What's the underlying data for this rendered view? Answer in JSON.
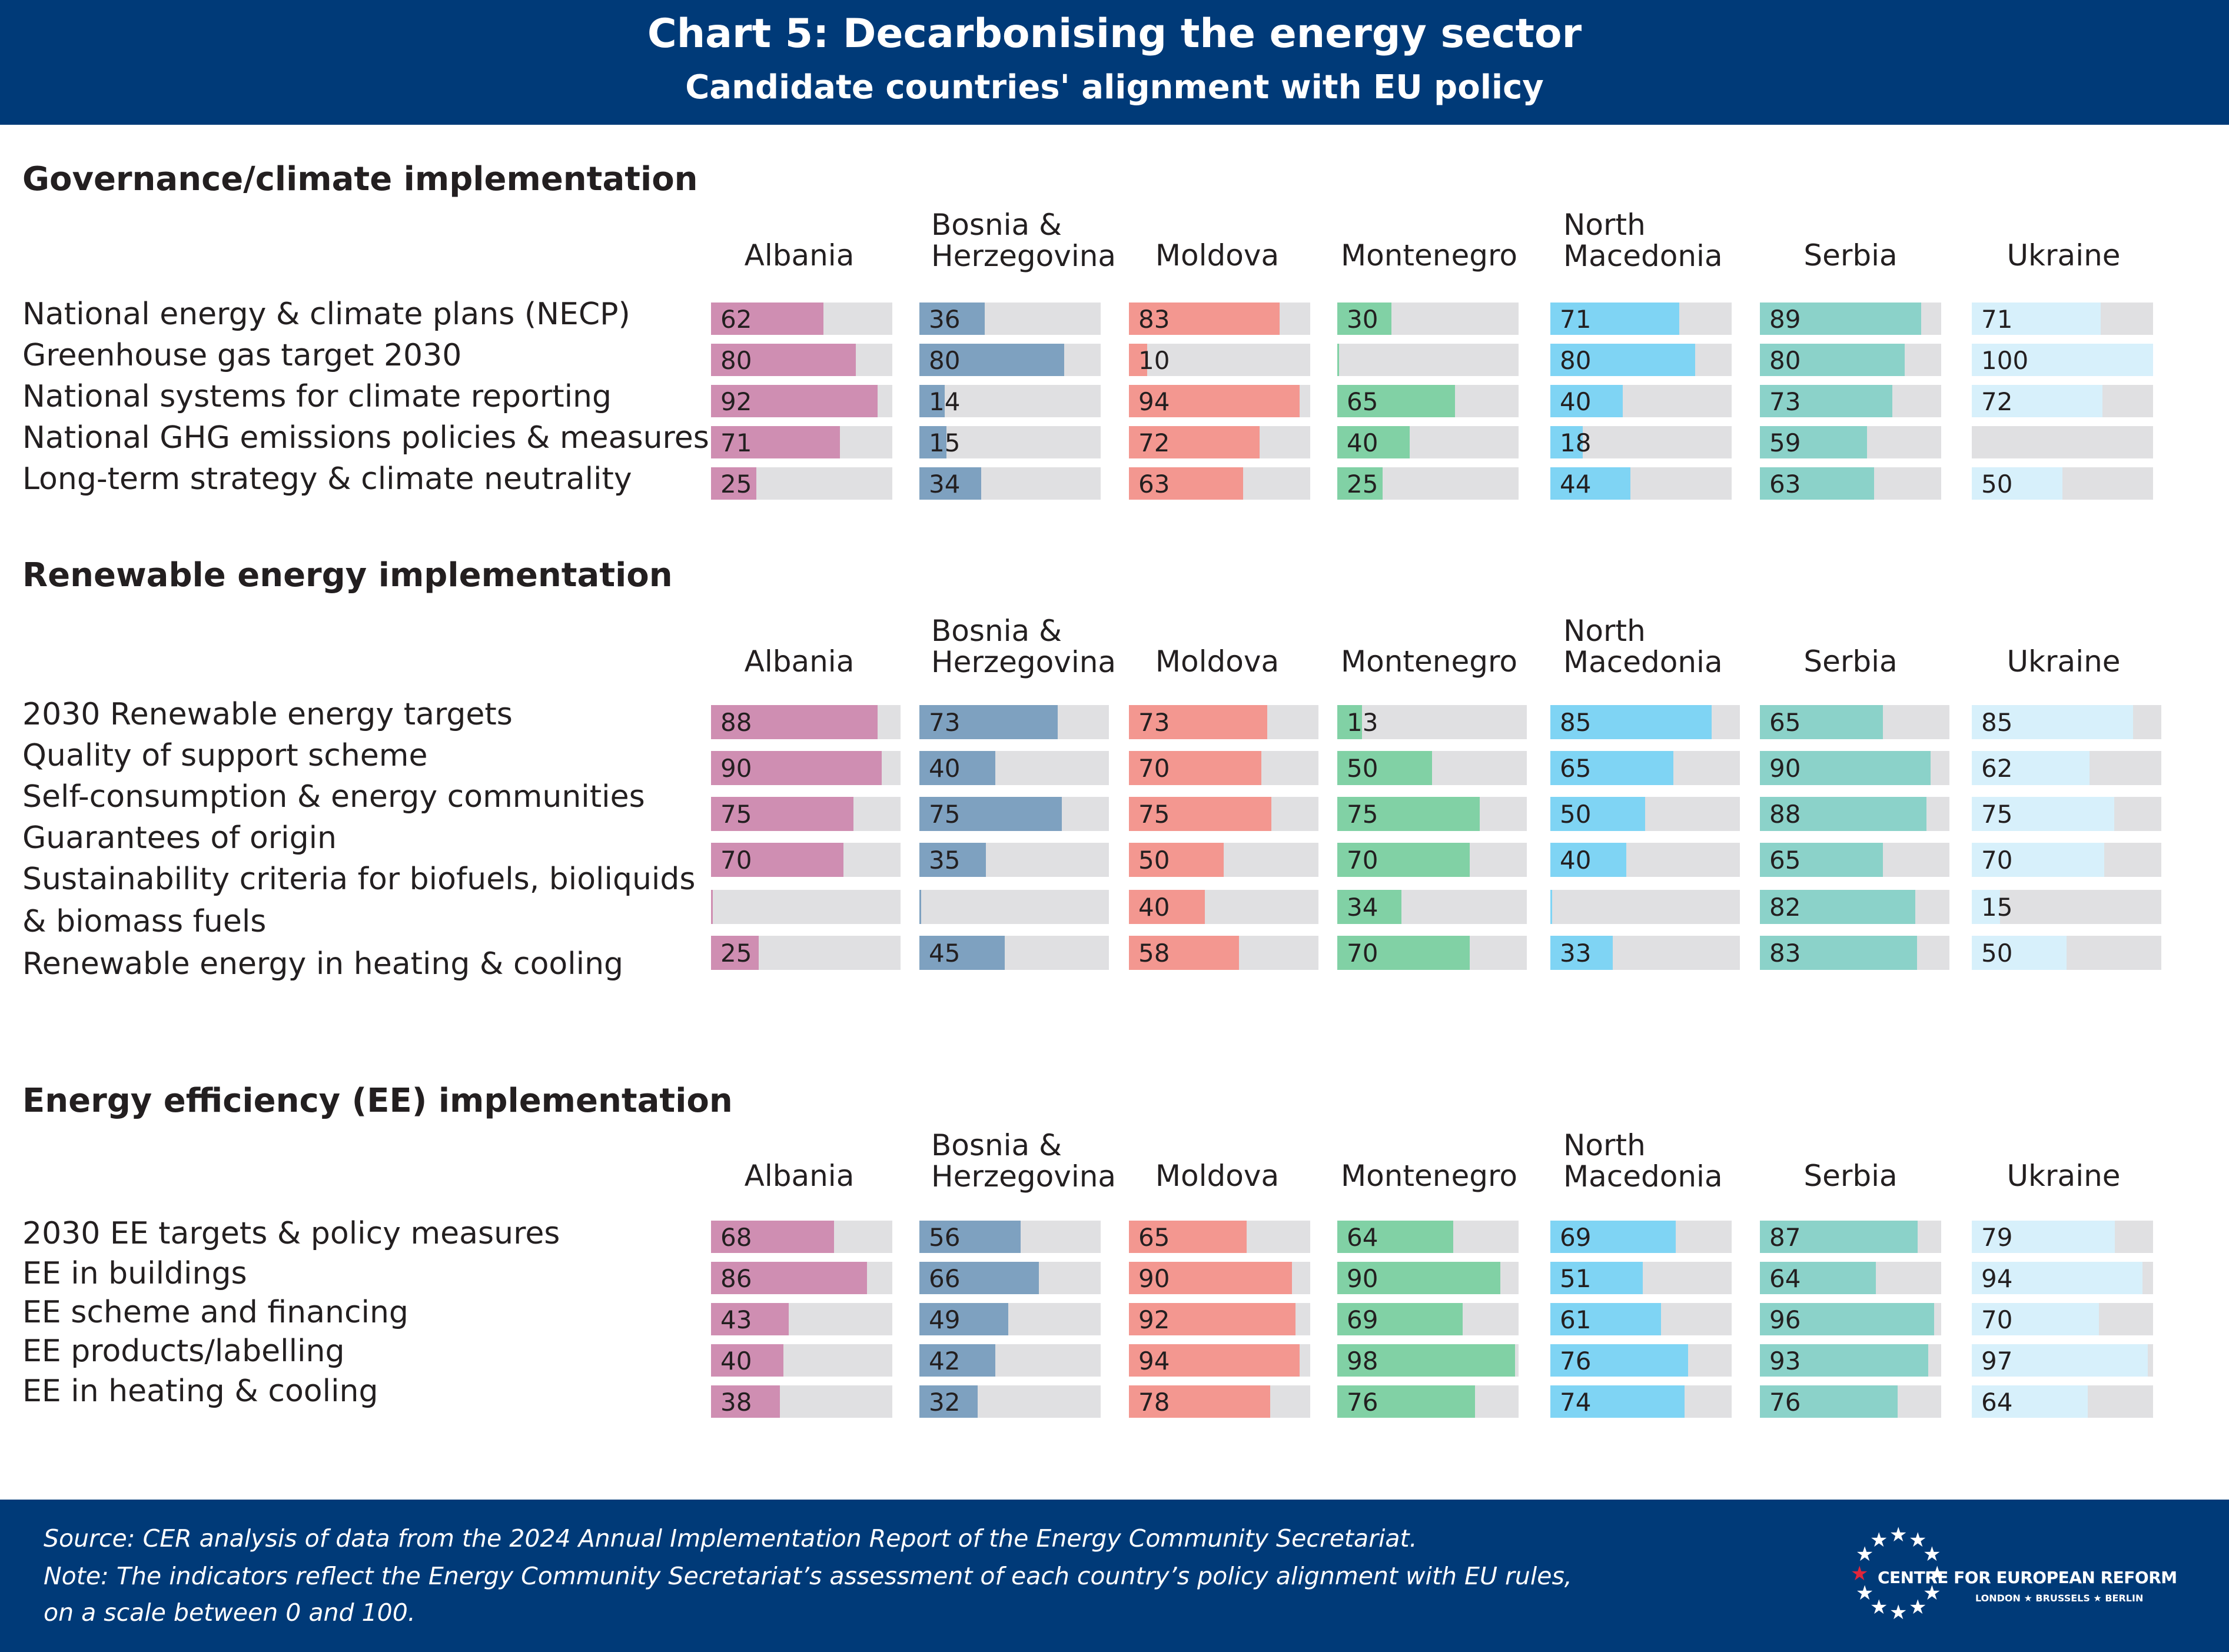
{
  "header": {
    "title": "Chart 5: Decarbonising the energy sector",
    "subtitle": "Candidate countries' alignment with EU policy"
  },
  "chart_data": {
    "type": "bar",
    "scale": [
      0,
      100
    ],
    "countries": [
      {
        "name": "Albania",
        "header_lines": [
          "Albania"
        ],
        "color": "#cf8eb2"
      },
      {
        "name": "Bosnia & Herzegovina",
        "header_lines": [
          "Bosnia &",
          "Herzegovina"
        ],
        "color": "#7ea1c0"
      },
      {
        "name": "Moldova",
        "header_lines": [
          "Moldova"
        ],
        "color": "#f39790"
      },
      {
        "name": "Montenegro",
        "header_lines": [
          "Montenegro"
        ],
        "color": "#81d1a5"
      },
      {
        "name": "North Macedonia",
        "header_lines": [
          "North",
          "Macedonia"
        ],
        "color": "#7fd4f4"
      },
      {
        "name": "Serbia",
        "header_lines": [
          "Serbia"
        ],
        "color": "#8bd2c9"
      },
      {
        "name": "Ukraine",
        "header_lines": [
          "Ukraine"
        ],
        "color": "#d7f0fb"
      }
    ],
    "track_color": "#e0e0e2",
    "sections": [
      {
        "title": "Governance/climate implementation",
        "rows": [
          {
            "label": "National energy & climate plans (NECP)",
            "values": [
              62,
              36,
              83,
              30,
              71,
              89,
              71
            ]
          },
          {
            "label": "Greenhouse gas target 2030",
            "values": [
              80,
              80,
              10,
              0,
              80,
              80,
              100
            ]
          },
          {
            "label": "National systems for climate reporting",
            "values": [
              92,
              14,
              94,
              65,
              40,
              73,
              72
            ]
          },
          {
            "label": "National GHG emissions policies & measures",
            "values": [
              71,
              15,
              72,
              40,
              18,
              59,
              null
            ]
          },
          {
            "label": "Long-term strategy & climate neutrality",
            "values": [
              25,
              34,
              63,
              25,
              44,
              63,
              50
            ]
          }
        ]
      },
      {
        "title": "Renewable energy implementation",
        "rows": [
          {
            "label": "2030 Renewable energy targets",
            "values": [
              88,
              73,
              73,
              13,
              85,
              65,
              85
            ]
          },
          {
            "label": "Quality of support scheme",
            "values": [
              90,
              40,
              70,
              50,
              65,
              90,
              62
            ]
          },
          {
            "label": "Self-consumption & energy communities",
            "values": [
              75,
              75,
              75,
              75,
              50,
              88,
              75
            ]
          },
          {
            "label": "Guarantees of origin",
            "values": [
              70,
              35,
              50,
              70,
              40,
              65,
              70
            ]
          },
          {
            "label": "Sustainability criteria for biofuels, bioliquids",
            "label2": "& biomass fuels",
            "values": [
              0,
              0,
              40,
              34,
              0,
              82,
              15
            ]
          },
          {
            "label": "Renewable energy in heating & cooling",
            "values": [
              25,
              45,
              58,
              70,
              33,
              83,
              50
            ]
          }
        ]
      },
      {
        "title": "Energy efficiency (EE) implementation",
        "rows": [
          {
            "label": "2030 EE targets & policy measures",
            "values": [
              68,
              56,
              65,
              64,
              69,
              87,
              79
            ]
          },
          {
            "label": "EE in buildings",
            "values": [
              86,
              66,
              90,
              90,
              51,
              64,
              94
            ]
          },
          {
            "label": "EE scheme and financing",
            "values": [
              43,
              49,
              92,
              69,
              61,
              96,
              70
            ]
          },
          {
            "label": "EE products/labelling",
            "values": [
              40,
              42,
              94,
              98,
              76,
              93,
              97
            ]
          },
          {
            "label": "EE in heating & cooling",
            "values": [
              38,
              32,
              78,
              76,
              74,
              76,
              64
            ]
          }
        ]
      }
    ]
  },
  "footer": {
    "source": "Source: CER analysis of data from the 2024 Annual Implementation Report of the Energy Community Secretariat.",
    "note1": "Note: The indicators reflect the Energy Community Secretariat’s assessment of each country’s policy alignment with EU rules,",
    "note2": "on a scale between 0 and 100.",
    "logo_name": "CENTRE FOR EUROPEAN REFORM",
    "logo_cities": "LONDON ★ BRUSSELS ★ BERLIN",
    "logo_icon": "eu-star-circle"
  }
}
